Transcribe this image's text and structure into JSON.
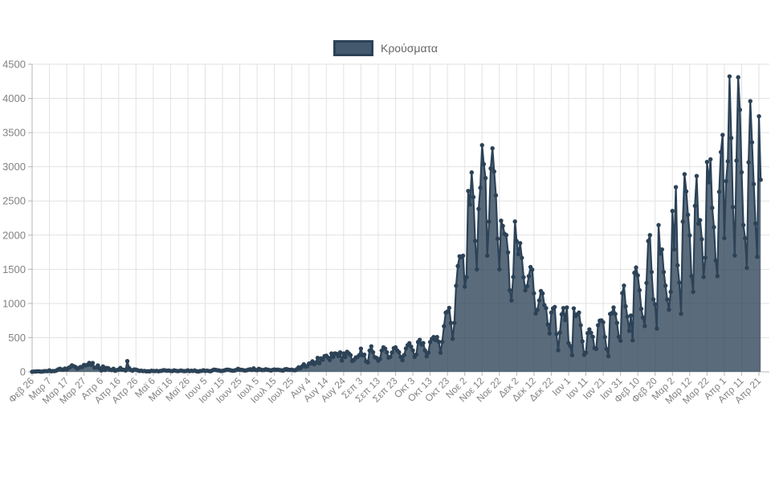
{
  "legend": {
    "label": "Κρούσματα"
  },
  "colors": {
    "line": "#2c4257",
    "area_fill": "rgba(44,66,87,0.78)",
    "grid": "#e2e2e2",
    "axis": "#b5b5b5",
    "tick_text": "#828282",
    "legend_text": "#666666",
    "swatch_fill": "#45596e",
    "swatch_border": "#2c4257"
  },
  "chart_data": {
    "type": "line",
    "title": "",
    "series_name": "Κρούσματα",
    "legend_position": "top-center",
    "grid": true,
    "area_fill": true,
    "marker": "circle",
    "ylim": [
      0,
      4500
    ],
    "y_ticks": [
      0,
      500,
      1000,
      1500,
      2000,
      2500,
      3000,
      3500,
      4000,
      4500
    ],
    "x_tick_interval_days": 10,
    "x_tick_labels": [
      "Φεβ 26",
      "Μαρ 7",
      "Μαρ 17",
      "Μαρ 27",
      "Απρ 6",
      "Απρ 16",
      "Απρ 26",
      "Μαϊ 6",
      "Μαϊ 16",
      "Μαϊ 26",
      "Ιουν 5",
      "Ιουν 15",
      "Ιουν 25",
      "Ιουλ 5",
      "Ιουλ 15",
      "Ιουλ 25",
      "Αυγ 4",
      "Αυγ 14",
      "Αυγ 24",
      "Σεπ 3",
      "Σεπ 13",
      "Σεπ 23",
      "Οκτ 3",
      "Οκτ 13",
      "Οκτ 23",
      "Νοε 2",
      "Νοε 12",
      "Νοε 22",
      "Δεκ 2",
      "Δεκ 12",
      "Δεκ 22",
      "Ιαν 1",
      "Ιαν 11",
      "Ιαν 21",
      "Ιαν 31",
      "Φεβ 10",
      "Φεβ 20",
      "Μαρ 2",
      "Μαρ 12",
      "Μαρ 22",
      "Απρ 1",
      "Απρ 11",
      "Απρ 21"
    ],
    "values": [
      1,
      3,
      4,
      7,
      7,
      2,
      4,
      9,
      10,
      9,
      21,
      7,
      11,
      10,
      18,
      34,
      45,
      35,
      33,
      48,
      35,
      57,
      70,
      94,
      82,
      71,
      48,
      56,
      71,
      71,
      100,
      95,
      102,
      130,
      102,
      129,
      60,
      62,
      93,
      52,
      20,
      77,
      27,
      56,
      52,
      31,
      25,
      45,
      15,
      25,
      33,
      56,
      31,
      30,
      19,
      156,
      55,
      28,
      16,
      35,
      32,
      22,
      12,
      17,
      10,
      12,
      6,
      8,
      6,
      15,
      13,
      10,
      14,
      7,
      12,
      15,
      24,
      19,
      15,
      18,
      12,
      10,
      21,
      15,
      10,
      13,
      18,
      13,
      9,
      12,
      21,
      10,
      15,
      12,
      19,
      8,
      4,
      11,
      13,
      22,
      12,
      17,
      12,
      8,
      18,
      32,
      28,
      22,
      19,
      12,
      14,
      20,
      28,
      32,
      27,
      20,
      15,
      19,
      28,
      43,
      32,
      29,
      24,
      18,
      23,
      31,
      37,
      28,
      50,
      28,
      24,
      43,
      33,
      25,
      27,
      37,
      32,
      25,
      19,
      27,
      35,
      28,
      31,
      26,
      22,
      18,
      36,
      40,
      32,
      27,
      31,
      24,
      23,
      39,
      65,
      52,
      78,
      110,
      75,
      83,
      121,
      124,
      153,
      110,
      135,
      203,
      126,
      196,
      177,
      230,
      235,
      208,
      172,
      268,
      217,
      270,
      262,
      230,
      284,
      164,
      268,
      217,
      293,
      270,
      244,
      157,
      174,
      209,
      217,
      242,
      339,
      241,
      251,
      152,
      137,
      310,
      372,
      286,
      214,
      204,
      163,
      188,
      310,
      358,
      339,
      286,
      207,
      218,
      283,
      346,
      358,
      312,
      286,
      218,
      170,
      245,
      342,
      390,
      418,
      368,
      313,
      218,
      252,
      435,
      468,
      398,
      421,
      314,
      226,
      280,
      435,
      482,
      508,
      466,
      508,
      438,
      280,
      438,
      667,
      865,
      882,
      935,
      714,
      482,
      715,
      1259,
      1547,
      1690,
      1678,
      1698,
      1246,
      1387,
      2646,
      2447,
      2917,
      2556,
      1914,
      1498,
      2383,
      2693,
      3316,
      3038,
      2835,
      1698,
      2198,
      2975,
      3270,
      2930,
      2581,
      1947,
      1498,
      2211,
      2135,
      2018,
      2001,
      1747,
      1193,
      1044,
      1388,
      2199,
      1912,
      1720,
      1882,
      1667,
      1383,
      1191,
      1251,
      1399,
      1533,
      1494,
      1149,
      853,
      906,
      1044,
      1182,
      1147,
      977,
      931,
      693,
      561,
      867,
      927,
      948,
      552,
      316,
      575,
      841,
      932,
      758,
      941,
      420,
      377,
      243,
      928,
      816,
      841,
      866,
      681,
      445,
      248,
      281,
      566,
      621,
      571,
      511,
      346,
      334,
      681,
      748,
      752,
      724,
      508,
      334,
      228,
      846,
      858,
      941,
      846,
      715,
      510,
      454,
      1151,
      1261,
      958,
      806,
      599,
      823,
      460,
      1448,
      1526,
      1410,
      1194,
      921,
      793,
      669,
      1300,
      1913,
      2000,
      1460,
      1060,
      988,
      632,
      2147,
      1730,
      1790,
      1460,
      1260,
      1060,
      908,
      1170,
      2353,
      1790,
      2702,
      1558,
      1305,
      848,
      2197,
      2891,
      2639,
      2296,
      1995,
      1400,
      1170,
      2428,
      2865,
      2167,
      2219,
      1940,
      1387,
      1669,
      3070,
      2773,
      3109,
      2399,
      2115,
      1629,
      1400,
      2633,
      3215,
      3465,
      1955,
      2789,
      3080,
      4322,
      3421,
      2411,
      1703,
      3089,
      4309,
      3833,
      2919,
      2147,
      1955,
      1520,
      3065,
      3960,
      3357,
      2747,
      2170,
      1682,
      3739,
      2810
    ]
  }
}
